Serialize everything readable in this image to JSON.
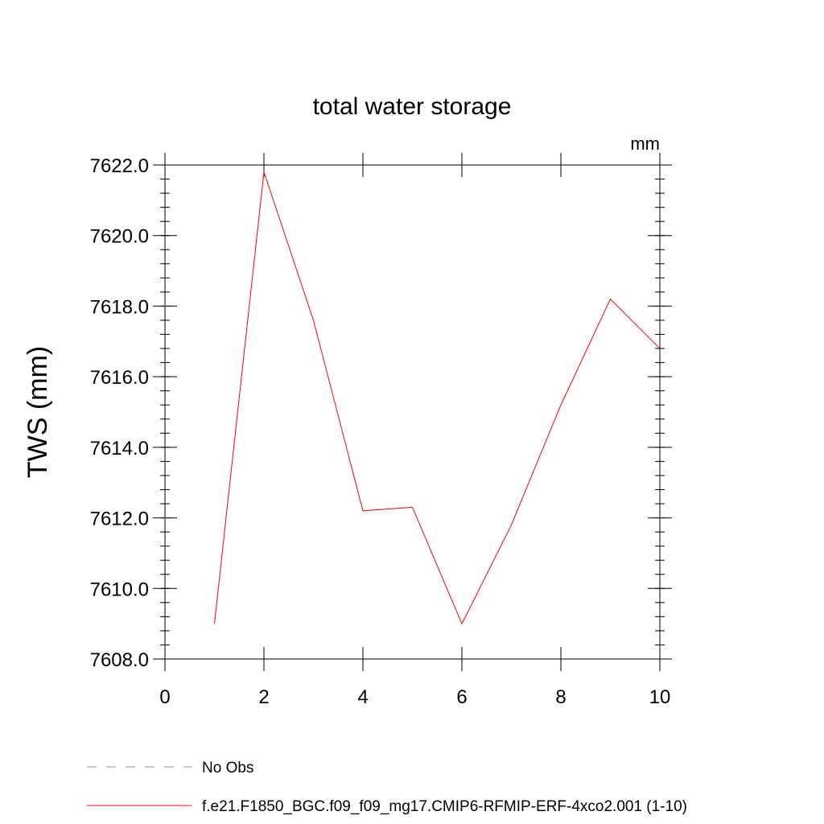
{
  "chart_data": {
    "type": "line",
    "title": "total water storage",
    "units_label": "mm",
    "xlabel": "",
    "ylabel": "TWS  (mm)",
    "xlim": [
      0,
      10
    ],
    "ylim": [
      7608.0,
      7622.0
    ],
    "x_ticks": [
      0,
      2,
      4,
      6,
      8,
      10
    ],
    "x_tick_labels": [
      "0",
      "2",
      "4",
      "6",
      "8",
      "10"
    ],
    "y_ticks": [
      7608.0,
      7610.0,
      7612.0,
      7614.0,
      7616.0,
      7618.0,
      7620.0,
      7622.0
    ],
    "y_tick_labels": [
      "7608.0",
      "7610.0",
      "7612.0",
      "7614.0",
      "7616.0",
      "7618.0",
      "7620.0",
      "7622.0"
    ],
    "grid": false,
    "legend_position": "bottom",
    "series": [
      {
        "name": "No Obs",
        "color": "#8888cc",
        "style": "dashed",
        "x": [],
        "values": []
      },
      {
        "name": "f.e21.F1850_BGC.f09_f09_mg17.CMIP6-RFMIP-ERF-4xco2.001 (1-10)",
        "color": "#ff0000",
        "style": "solid",
        "x": [
          1,
          2,
          3,
          4,
          5,
          6,
          7,
          8,
          9,
          10
        ],
        "values": [
          7609.0,
          7621.8,
          7617.6,
          7612.2,
          7612.3,
          7609.0,
          7611.8,
          7615.2,
          7618.2,
          7616.8
        ]
      }
    ]
  }
}
